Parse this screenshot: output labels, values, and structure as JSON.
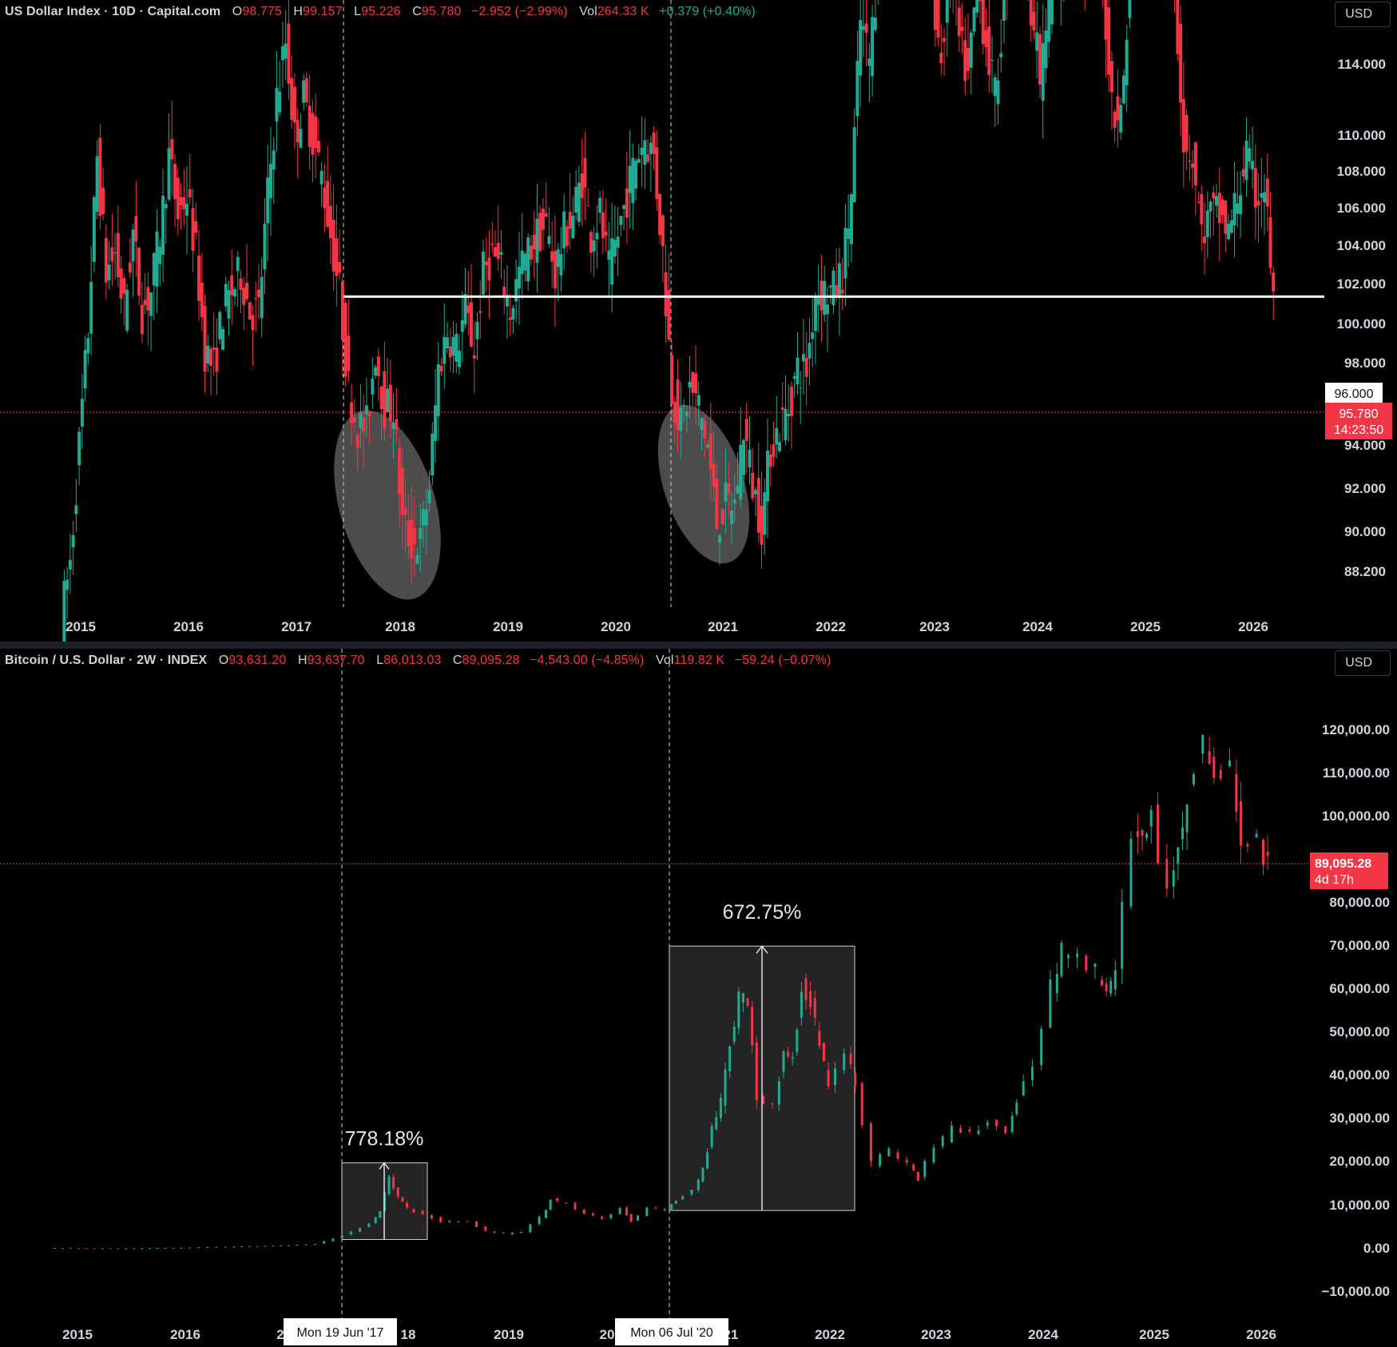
{
  "chart_data": [
    {
      "type": "candlestick",
      "symbol": "US Dollar Index · 10D · Capital.com",
      "ohlc": {
        "O": "98.775",
        "H": "99.157",
        "L": "95.226",
        "C": "95.780",
        "change": "−2.952 (−2.99%)",
        "vol_label": "Vol",
        "vol": "264.33 K",
        "vol_change": "+0.379 (+0.40%)"
      },
      "currency": "USD",
      "y_ticks": [
        "114.000",
        "110.000",
        "108.000",
        "106.000",
        "104.000",
        "102.000",
        "100.000",
        "98.000",
        "94.000",
        "92.000",
        "90.000",
        "88.200"
      ],
      "y_tick_values": [
        114,
        110,
        108,
        106,
        104,
        102,
        100,
        98,
        94,
        92,
        90,
        88.2
      ],
      "x_ticks": [
        "2015",
        "2016",
        "2017",
        "2018",
        "2019",
        "2020",
        "2021",
        "2022",
        "2023",
        "2024",
        "2025",
        "2026"
      ],
      "horizontal_level": {
        "label": "96.000",
        "value": 96
      },
      "last_price": {
        "label": "95.780",
        "countdown": "14:23:50",
        "value": 95.78
      },
      "series": [
        {
          "values": [
            [
              "2014-11",
              87.5
            ],
            [
              "2014-12",
              89
            ],
            [
              "2015-01",
              92
            ],
            [
              "2015-02",
              95
            ],
            [
              "2015-03",
              99.5
            ],
            [
              "2015-04",
              96.5
            ],
            [
              "2015-05",
              97
            ],
            [
              "2015-06",
              95.5
            ],
            [
              "2015-07",
              97.5
            ],
            [
              "2015-08",
              95.5
            ],
            [
              "2015-09",
              96
            ],
            [
              "2015-10",
              97.5
            ],
            [
              "2015-11",
              99.5
            ],
            [
              "2015-12",
              98
            ],
            [
              "2016-01",
              98.5
            ],
            [
              "2016-02",
              97
            ],
            [
              "2016-03",
              94.5
            ],
            [
              "2016-04",
              94
            ],
            [
              "2016-05",
              95.5
            ],
            [
              "2016-06",
              96
            ],
            [
              "2016-07",
              96.5
            ],
            [
              "2016-08",
              95.5
            ],
            [
              "2016-09",
              95.5
            ],
            [
              "2016-10",
              98.5
            ],
            [
              "2016-11",
              101
            ],
            [
              "2016-12",
              102.5
            ],
            [
              "2017-01",
              100
            ],
            [
              "2017-02",
              101
            ],
            [
              "2017-03",
              100
            ],
            [
              "2017-04",
              99
            ],
            [
              "2017-05",
              97.5
            ],
            [
              "2017-06",
              96
            ],
            [
              "2017-07",
              93.5
            ],
            [
              "2017-08",
              92.5
            ],
            [
              "2017-09",
              92.5
            ],
            [
              "2017-10",
              94.5
            ],
            [
              "2017-11",
              93
            ],
            [
              "2017-12",
              93
            ],
            [
              "2018-01",
              90
            ],
            [
              "2018-02",
              89.5
            ],
            [
              "2018-03",
              89.5
            ],
            [
              "2018-04",
              91
            ],
            [
              "2018-05",
              94
            ],
            [
              "2018-06",
              95
            ],
            [
              "2018-07",
              94.5
            ],
            [
              "2018-08",
              95.5
            ],
            [
              "2018-09",
              94.5
            ],
            [
              "2018-10",
              96.5
            ],
            [
              "2018-11",
              97
            ],
            [
              "2018-12",
              96.5
            ],
            [
              "2019-01",
              95.5
            ],
            [
              "2019-02",
              96.5
            ],
            [
              "2019-03",
              97
            ],
            [
              "2019-04",
              97.5
            ],
            [
              "2019-05",
              97.7
            ],
            [
              "2019-06",
              96.5
            ],
            [
              "2019-07",
              97.5
            ],
            [
              "2019-08",
              98
            ],
            [
              "2019-09",
              99
            ],
            [
              "2019-10",
              97.5
            ],
            [
              "2019-11",
              98
            ],
            [
              "2019-12",
              96.5
            ],
            [
              "2020-01",
              97.5
            ],
            [
              "2020-02",
              98.5
            ],
            [
              "2020-03",
              99.5
            ],
            [
              "2020-04",
              100
            ],
            [
              "2020-05",
              99.5
            ],
            [
              "2020-06",
              97
            ],
            [
              "2020-07",
              93.5
            ],
            [
              "2020-08",
              92.5
            ],
            [
              "2020-09",
              93.5
            ],
            [
              "2020-10",
              93
            ],
            [
              "2020-11",
              92
            ],
            [
              "2020-12",
              90
            ],
            [
              "2021-01",
              90.5
            ],
            [
              "2021-02",
              90.5
            ],
            [
              "2021-03",
              92.5
            ],
            [
              "2021-04",
              91
            ],
            [
              "2021-05",
              90
            ],
            [
              "2021-06",
              92
            ],
            [
              "2021-07",
              92.5
            ],
            [
              "2021-08",
              93
            ],
            [
              "2021-09",
              94
            ],
            [
              "2021-10",
              94
            ],
            [
              "2021-11",
              96
            ],
            [
              "2021-12",
              96
            ],
            [
              "2022-01",
              96
            ],
            [
              "2022-02",
              96.5
            ],
            [
              "2022-03",
              98.5
            ],
            [
              "2022-04",
              103
            ],
            [
              "2022-05",
              102
            ],
            [
              "2022-06",
              104.5
            ],
            [
              "2022-07",
              106
            ],
            [
              "2022-08",
              108.5
            ],
            [
              "2022-09",
              112
            ],
            [
              "2022-10",
              111
            ],
            [
              "2022-11",
              106
            ],
            [
              "2022-12",
              104
            ],
            [
              "2023-01",
              102
            ],
            [
              "2023-02",
              104.5
            ],
            [
              "2023-03",
              102.5
            ],
            [
              "2023-04",
              101.5
            ],
            [
              "2023-05",
              104
            ],
            [
              "2023-06",
              102.5
            ],
            [
              "2023-07",
              101
            ],
            [
              "2023-08",
              103.5
            ],
            [
              "2023-09",
              106
            ],
            [
              "2023-10",
              106.5
            ],
            [
              "2023-11",
              103.5
            ],
            [
              "2023-12",
              101.5
            ],
            [
              "2024-01",
              103.5
            ],
            [
              "2024-02",
              104
            ],
            [
              "2024-03",
              104.5
            ],
            [
              "2024-04",
              106
            ],
            [
              "2024-05",
              104.5
            ],
            [
              "2024-06",
              105.5
            ],
            [
              "2024-07",
              104
            ],
            [
              "2024-08",
              101
            ],
            [
              "2024-09",
              100.5
            ],
            [
              "2024-10",
              104
            ],
            [
              "2024-11",
              106.5
            ],
            [
              "2024-12",
              108
            ],
            [
              "2025-01",
              108.5
            ],
            [
              "2025-02",
              107
            ],
            [
              "2025-03",
              104
            ],
            [
              "2025-04",
              100
            ],
            [
              "2025-05",
              99.5
            ],
            [
              "2025-06",
              97.5
            ],
            [
              "2025-07",
              98
            ],
            [
              "2025-08",
              98
            ],
            [
              "2025-09",
              97.5
            ],
            [
              "2025-10",
              98.5
            ],
            [
              "2025-11",
              99.5
            ],
            [
              "2025-12",
              98.5
            ],
            [
              "2026-01",
              98.8
            ],
            [
              "2026-02",
              95.8
            ]
          ]
        }
      ]
    },
    {
      "type": "candlestick",
      "symbol": "Bitcoin / U.S. Dollar · 2W · INDEX",
      "ohlc": {
        "O": "93,631.20",
        "H": "93,637.70",
        "L": "86,013.03",
        "C": "89,095.28",
        "change": "−4,543.00 (−4.85%)",
        "vol_label": "Vol",
        "vol": "119.82 K",
        "vol_change": "−59.24 (−0.07%)"
      },
      "currency": "USD",
      "y_ticks": [
        "120,000.00",
        "110,000.00",
        "100,000.00",
        "80,000.00",
        "70,000.00",
        "60,000.00",
        "50,000.00",
        "40,000.00",
        "30,000.00",
        "20,000.00",
        "10,000.00",
        "0.00",
        "−10,000.00"
      ],
      "y_tick_values": [
        120000,
        110000,
        100000,
        80000,
        70000,
        60000,
        50000,
        40000,
        30000,
        20000,
        10000,
        0,
        -10000
      ],
      "x_ticks": [
        "2015",
        "2016",
        "2",
        "18",
        "2019",
        "20",
        "21",
        "2022",
        "2023",
        "2024",
        "2025",
        "2026"
      ],
      "date_tags": [
        "Mon 19 Jun '17",
        "Mon 06 Jul '20"
      ],
      "last_price": {
        "label": "89,095.28",
        "countdown": "4d 17h",
        "value": 89095
      },
      "measurements": [
        {
          "label": "778.18%",
          "from_date": "2017-06-19",
          "to_date": "2018-01-15",
          "low": 2300,
          "high": 20000
        },
        {
          "label": "672.75%",
          "from_date": "2020-07-06",
          "to_date": "2022-04-01",
          "low": 9000,
          "high": 70000
        }
      ],
      "series": [
        {
          "values": [
            [
              "2014-10",
              350
            ],
            [
              "2015-06",
              250
            ],
            [
              "2016-01",
              400
            ],
            [
              "2016-06",
              650
            ],
            [
              "2017-01",
              950
            ],
            [
              "2017-04",
              1300
            ],
            [
              "2017-06",
              2500
            ],
            [
              "2017-08",
              4200
            ],
            [
              "2017-10",
              6000
            ],
            [
              "2017-11",
              9000
            ],
            [
              "2017-12",
              17000
            ],
            [
              "2018-01",
              12000
            ],
            [
              "2018-02",
              9500
            ],
            [
              "2018-04",
              8000
            ],
            [
              "2018-06",
              6500
            ],
            [
              "2018-09",
              6500
            ],
            [
              "2018-11",
              4200
            ],
            [
              "2019-01",
              3600
            ],
            [
              "2019-03",
              4000
            ],
            [
              "2019-05",
              7500
            ],
            [
              "2019-06",
              11500
            ],
            [
              "2019-08",
              10500
            ],
            [
              "2019-10",
              8500
            ],
            [
              "2019-12",
              7200
            ],
            [
              "2020-02",
              9500
            ],
            [
              "2020-03",
              6500
            ],
            [
              "2020-05",
              9500
            ],
            [
              "2020-07",
              9200
            ],
            [
              "2020-08",
              11500
            ],
            [
              "2020-10",
              13500
            ],
            [
              "2020-11",
              18500
            ],
            [
              "2020-12",
              28000
            ],
            [
              "2021-01",
              34000
            ],
            [
              "2021-02",
              47000
            ],
            [
              "2021-03",
              58000
            ],
            [
              "2021-04",
              57000
            ],
            [
              "2021-05",
              36000
            ],
            [
              "2021-07",
              33000
            ],
            [
              "2021-08",
              47000
            ],
            [
              "2021-09",
              44000
            ],
            [
              "2021-10",
              61000
            ],
            [
              "2021-11",
              57000
            ],
            [
              "2021-12",
              47000
            ],
            [
              "2022-01",
              38000
            ],
            [
              "2022-03",
              45000
            ],
            [
              "2022-04",
              38000
            ],
            [
              "2022-06",
              20000
            ],
            [
              "2022-08",
              23000
            ],
            [
              "2022-10",
              19500
            ],
            [
              "2022-11",
              16500
            ],
            [
              "2023-01",
              23000
            ],
            [
              "2023-03",
              28000
            ],
            [
              "2023-05",
              27000
            ],
            [
              "2023-07",
              29500
            ],
            [
              "2023-09",
              26500
            ],
            [
              "2023-10",
              34500
            ],
            [
              "2023-12",
              42500
            ],
            [
              "2024-02",
              61000
            ],
            [
              "2024-03",
              69000
            ],
            [
              "2024-05",
              67000
            ],
            [
              "2024-07",
              64000
            ],
            [
              "2024-08",
              59000
            ],
            [
              "2024-09",
              63000
            ],
            [
              "2024-11",
              96000
            ],
            [
              "2024-12",
              94000
            ],
            [
              "2025-01",
              102000
            ],
            [
              "2025-03",
              82000
            ],
            [
              "2025-04",
              94000
            ],
            [
              "2025-05",
              104000
            ],
            [
              "2025-07",
              118000
            ],
            [
              "2025-08",
              109000
            ],
            [
              "2025-10",
              111000
            ],
            [
              "2025-11",
              91000
            ],
            [
              "2026-01",
              93600
            ],
            [
              "2026-02",
              89100
            ]
          ]
        }
      ]
    }
  ]
}
